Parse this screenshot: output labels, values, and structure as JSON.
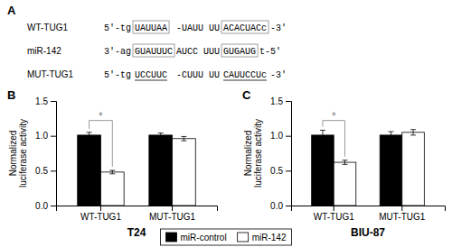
{
  "chart_data": [
    {
      "type": "text",
      "annotations": [
        {
          "text": "A"
        },
        {
          "label": "WT-TUG1",
          "segments": [
            "5'-tg",
            "UAUUAA",
            " -UAUU UU",
            "ACACUACc",
            "-3'"
          ]
        },
        {
          "label": "miR-142",
          "segments": [
            "3'-ag",
            "GUAUUUC",
            "AUCC UUU",
            "GUGAUG",
            "t-5'"
          ]
        },
        {
          "label": "MUT-TUG1",
          "segments": [
            "5'-tg",
            "UCCUUC",
            " -CUUU UU",
            "CAUUCCUc",
            "-3'"
          ]
        }
      ]
    },
    {
      "type": "bar",
      "xlabel": "T24",
      "ylabel": "Normalized\nluciferase activity",
      "categories": [
        "WT-TUG1",
        "MUT-TUG1"
      ],
      "series": [
        {
          "name": "miR-control",
          "color": "#000000",
          "values": [
            1.01,
            1.01
          ],
          "errors": [
            0.04,
            0.03
          ]
        },
        {
          "name": "miR-142",
          "color": "#ffffff",
          "values": [
            0.48,
            0.96
          ],
          "errors": [
            0.025,
            0.03
          ]
        }
      ],
      "ylim": [
        0,
        1.5
      ],
      "yticks": [
        {
          "value": 0,
          "label": "0.0"
        },
        0.5,
        {
          "value": 1,
          "label": "1.0"
        },
        1.5
      ],
      "grid": false,
      "legend": "bottom",
      "annotations": [
        {
          "text": "B"
        },
        {
          "text": "*",
          "category": "WT-TUG1",
          "y": 1.22,
          "color": "#808080"
        }
      ]
    },
    {
      "type": "bar",
      "xlabel": "BIU-87",
      "ylabel": "Normalized\nluciferase activity",
      "categories": [
        "WT-TUG1",
        "MUT-TUG1"
      ],
      "series": [
        {
          "name": "miR-control",
          "color": "#000000",
          "values": [
            1.01,
            1.01
          ],
          "errors": [
            0.07,
            0.05
          ]
        },
        {
          "name": "miR-142",
          "color": "#ffffff",
          "values": [
            0.62,
            1.05
          ],
          "errors": [
            0.03,
            0.04
          ]
        }
      ],
      "ylim": [
        0,
        1.5
      ],
      "yticks": [
        {
          "value": 0,
          "label": "0.0"
        },
        0.5,
        {
          "value": 1,
          "label": "1.0"
        },
        1.5
      ],
      "grid": false,
      "annotations": [
        {
          "text": "C"
        },
        {
          "text": "*",
          "category": "WT-TUG1",
          "y": 1.22,
          "color": "#808080"
        }
      ]
    }
  ]
}
